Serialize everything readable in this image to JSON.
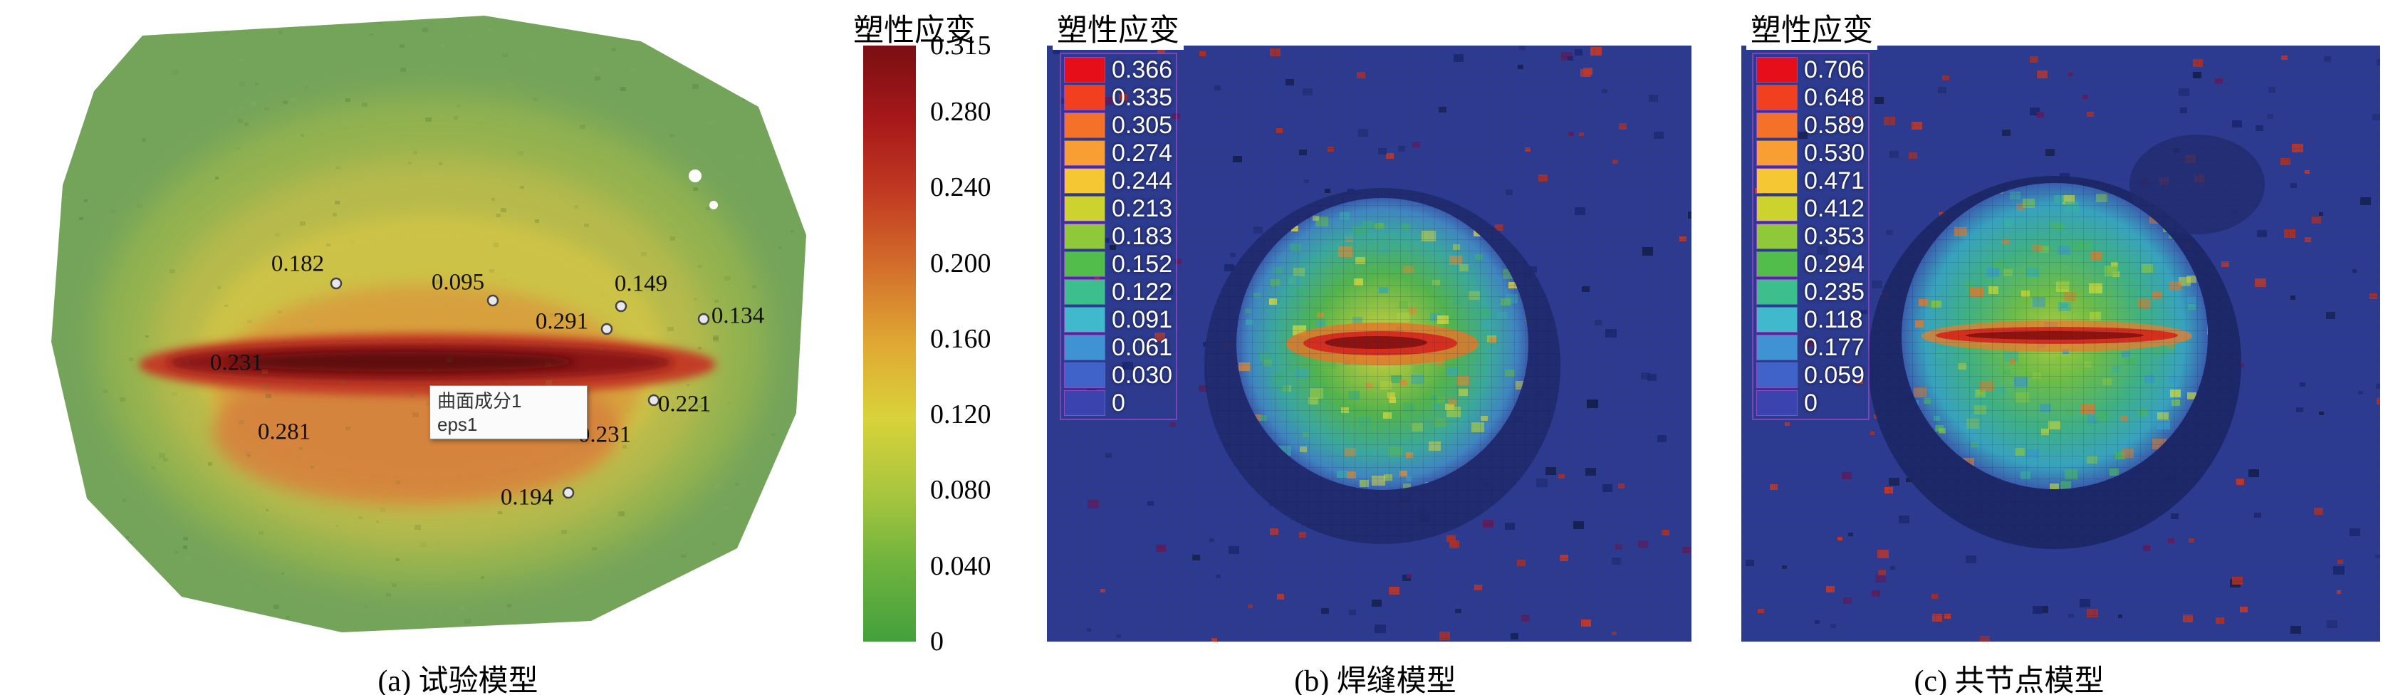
{
  "figure": {
    "panels": {
      "a": {
        "caption": "(a) 试验模型",
        "colorbar_title": "塑性应变",
        "colorbar_max": 0.315,
        "colorbar_ticks": [
          "0.315",
          "0.280",
          "0.240",
          "0.200",
          "0.160",
          "0.120",
          "0.080",
          "0.040",
          "0"
        ],
        "points": [
          "0.182",
          "0.095",
          "0.149",
          "0.291",
          "0.134",
          "0.231",
          "0.221",
          "0.281",
          "0.231",
          "0.194"
        ],
        "annotation_line1": "曲面成分1",
        "annotation_line2": "eps1"
      },
      "b": {
        "caption": "(b) 焊缝模型",
        "legend_title": "塑性应变",
        "legend_values": [
          "0.366",
          "0.335",
          "0.305",
          "0.274",
          "0.244",
          "0.213",
          "0.183",
          "0.152",
          "0.122",
          "0.091",
          "0.061",
          "0.030",
          "0"
        ]
      },
      "c": {
        "caption": "(c) 共节点模型",
        "legend_title": "塑性应变",
        "legend_values": [
          "0.706",
          "0.648",
          "0.589",
          "0.530",
          "0.471",
          "0.412",
          "0.353",
          "0.294",
          "0.235",
          "0.118",
          "0.177",
          "0.059",
          "0"
        ]
      }
    },
    "colors": {
      "colorbar_gradient": [
        "#7a0f13",
        "#a6181a",
        "#c23b22",
        "#d3702c",
        "#e0a833",
        "#d9d23a",
        "#a9c63e",
        "#6cb23e",
        "#44a03c"
      ],
      "legend_scale": [
        "#e60e19",
        "#f1401f",
        "#f4712a",
        "#f99e33",
        "#f5c733",
        "#ccd32f",
        "#8fc93a",
        "#52bd4a",
        "#3dbe8d",
        "#3fb9cb",
        "#3f93d2",
        "#3f63c9",
        "#3a43ae"
      ],
      "mesh_bg": "#2c3a8f",
      "mesh_speckle": [
        "#a83028",
        "#c03828",
        "#5c1e5e",
        "#1c2870",
        "#223078",
        "#16204f"
      ],
      "hotspot_mottle_b": [
        "#e0d838",
        "#a8cc40",
        "#60b848",
        "#3cae74",
        "#38a8ac",
        "#e08830"
      ],
      "hotspot_mottle_c": [
        "#c8d838",
        "#84c444",
        "#48b460",
        "#38b0a0",
        "#3898c8",
        "#e07828"
      ],
      "blob_noise": [
        "#4f7a3a",
        "#92b35c",
        "#33551f"
      ]
    }
  },
  "chart_data": [
    {
      "type": "heatmap",
      "title": "(a) 试验模型",
      "legend_title": "塑性应变",
      "colorbar_ticks": [
        0.315,
        0.28,
        0.24,
        0.2,
        0.16,
        0.12,
        0.08,
        0.04,
        0
      ],
      "colorbar_range": [
        0,
        0.315
      ],
      "point_measurements": [
        0.182,
        0.095,
        0.149,
        0.291,
        0.134,
        0.231,
        0.221,
        0.281,
        0.231,
        0.194
      ],
      "annotation": "曲面成分1 eps1",
      "legend_position": "right-colorbar"
    },
    {
      "type": "heatmap",
      "title": "(b) 焊缝模型",
      "legend_title": "塑性应变",
      "legend_values": [
        0.366,
        0.335,
        0.305,
        0.274,
        0.244,
        0.213,
        0.183,
        0.152,
        0.122,
        0.091,
        0.061,
        0.03,
        0
      ],
      "legend_position": "top-left"
    },
    {
      "type": "heatmap",
      "title": "(c) 共节点模型",
      "legend_title": "塑性应变",
      "legend_values": [
        0.706,
        0.648,
        0.589,
        0.53,
        0.471,
        0.412,
        0.353,
        0.294,
        0.235,
        0.118,
        0.177,
        0.059,
        0
      ],
      "legend_position": "top-left"
    }
  ]
}
